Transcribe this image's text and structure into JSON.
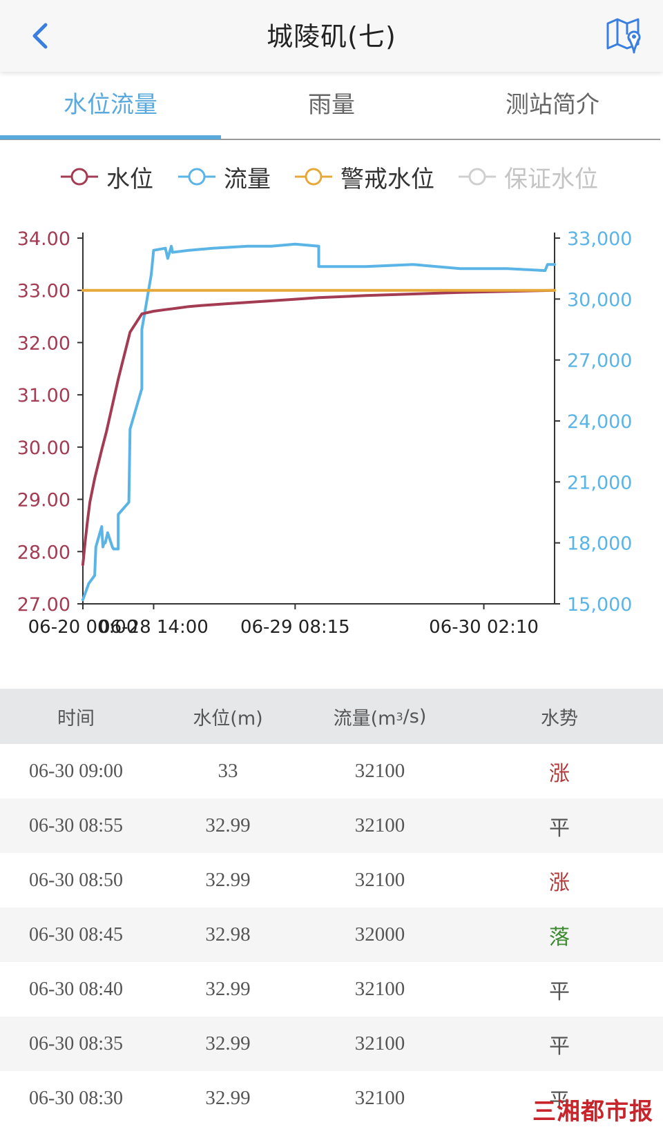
{
  "header": {
    "title": "城陵矶(七)",
    "back_icon": "chevron-left-icon",
    "map_icon": "map-pin-icon"
  },
  "tabs": [
    {
      "label": "水位流量",
      "active": true
    },
    {
      "label": "雨量",
      "active": false
    },
    {
      "label": "测站简介",
      "active": false
    }
  ],
  "legend": [
    {
      "label": "水位",
      "color": "#a33b52"
    },
    {
      "label": "流量",
      "color": "#5ab4e6"
    },
    {
      "label": "警戒水位",
      "color": "#e7a83a"
    },
    {
      "label": "保证水位",
      "color": "#cfcfcf"
    }
  ],
  "chart_data": {
    "type": "line",
    "x_ticks": [
      "06-20 00:00",
      "06-28 14:00",
      "06-29 08:15",
      "06-30 02:10"
    ],
    "y_left": {
      "ticks": [
        "27.00",
        "28.00",
        "29.00",
        "30.00",
        "31.00",
        "32.00",
        "33.00",
        "34.00"
      ],
      "range": [
        27,
        34
      ],
      "color": "#a33b52"
    },
    "y_right": {
      "ticks": [
        "15,000",
        "18,000",
        "21,000",
        "24,000",
        "27,000",
        "30,000",
        "33,000"
      ],
      "range": [
        15000,
        33000
      ],
      "color": "#5ab4e6"
    },
    "series": [
      {
        "name": "水位",
        "axis": "left",
        "color": "#a33b52",
        "x": [
          0,
          0.1,
          0.2,
          0.3,
          0.5,
          0.8,
          1.0,
          1.5,
          2.0,
          2.5,
          3.0,
          3.5,
          4.0,
          4.5,
          5.0,
          6.0,
          7.0,
          8.0,
          9.0,
          10.0,
          12.0,
          14.0,
          16.0,
          18.0,
          20.0
        ],
        "y": [
          27.75,
          28.2,
          28.6,
          28.95,
          29.4,
          29.95,
          30.3,
          31.3,
          32.2,
          32.55,
          32.6,
          32.63,
          32.66,
          32.69,
          32.71,
          32.74,
          32.77,
          32.8,
          32.83,
          32.86,
          32.9,
          32.93,
          32.96,
          32.98,
          33.0
        ]
      },
      {
        "name": "流量",
        "axis": "right",
        "color": "#5ab4e6",
        "x": [
          0,
          0.25,
          0.5,
          0.55,
          0.6,
          0.8,
          0.85,
          0.9,
          0.95,
          1.05,
          1.25,
          1.3,
          1.5,
          1.5,
          1.95,
          2.0,
          2.5,
          2.5,
          2.9,
          3.0,
          3.5,
          3.6,
          3.75,
          3.8,
          4.5,
          5.5,
          7.0,
          8.0,
          9.0,
          10.0,
          10.0,
          12.0,
          14.0,
          16.0,
          18.0,
          19.6,
          19.7,
          20.0
        ],
        "y": [
          15200,
          16000,
          16400,
          17800,
          18000,
          18800,
          17800,
          18000,
          18000,
          18500,
          17800,
          17700,
          17700,
          19400,
          20000,
          23600,
          25600,
          28500,
          31200,
          32400,
          32500,
          32000,
          32600,
          32300,
          32400,
          32500,
          32600,
          32600,
          32700,
          32600,
          31600,
          31600,
          31700,
          31500,
          31500,
          31400,
          31700,
          31700
        ]
      },
      {
        "name": "警戒水位",
        "axis": "left",
        "color": "#e7a83a",
        "x": [
          0,
          20
        ],
        "y": [
          33.0,
          33.0
        ]
      }
    ],
    "x_tick_positions": [
      0,
      3,
      9,
      17
    ],
    "grid": false,
    "legend": "top"
  },
  "table": {
    "headers": [
      "时间",
      "水位(m)",
      "流量(m",
      "3",
      "/s)",
      "水势"
    ],
    "rows": [
      {
        "time": "06-30 09:00",
        "level": "33",
        "flow": "32100",
        "trend": "涨",
        "trend_type": "up"
      },
      {
        "time": "06-30 08:55",
        "level": "32.99",
        "flow": "32100",
        "trend": "平",
        "trend_type": "flat"
      },
      {
        "time": "06-30 08:50",
        "level": "32.99",
        "flow": "32100",
        "trend": "涨",
        "trend_type": "up"
      },
      {
        "time": "06-30 08:45",
        "level": "32.98",
        "flow": "32000",
        "trend": "落",
        "trend_type": "down"
      },
      {
        "time": "06-30 08:40",
        "level": "32.99",
        "flow": "32100",
        "trend": "平",
        "trend_type": "flat"
      },
      {
        "time": "06-30 08:35",
        "level": "32.99",
        "flow": "32100",
        "trend": "平",
        "trend_type": "flat"
      },
      {
        "time": "06-30 08:30",
        "level": "32.99",
        "flow": "32100",
        "trend": "平",
        "trend_type": "flat"
      }
    ]
  },
  "watermark": "三湘都市报"
}
